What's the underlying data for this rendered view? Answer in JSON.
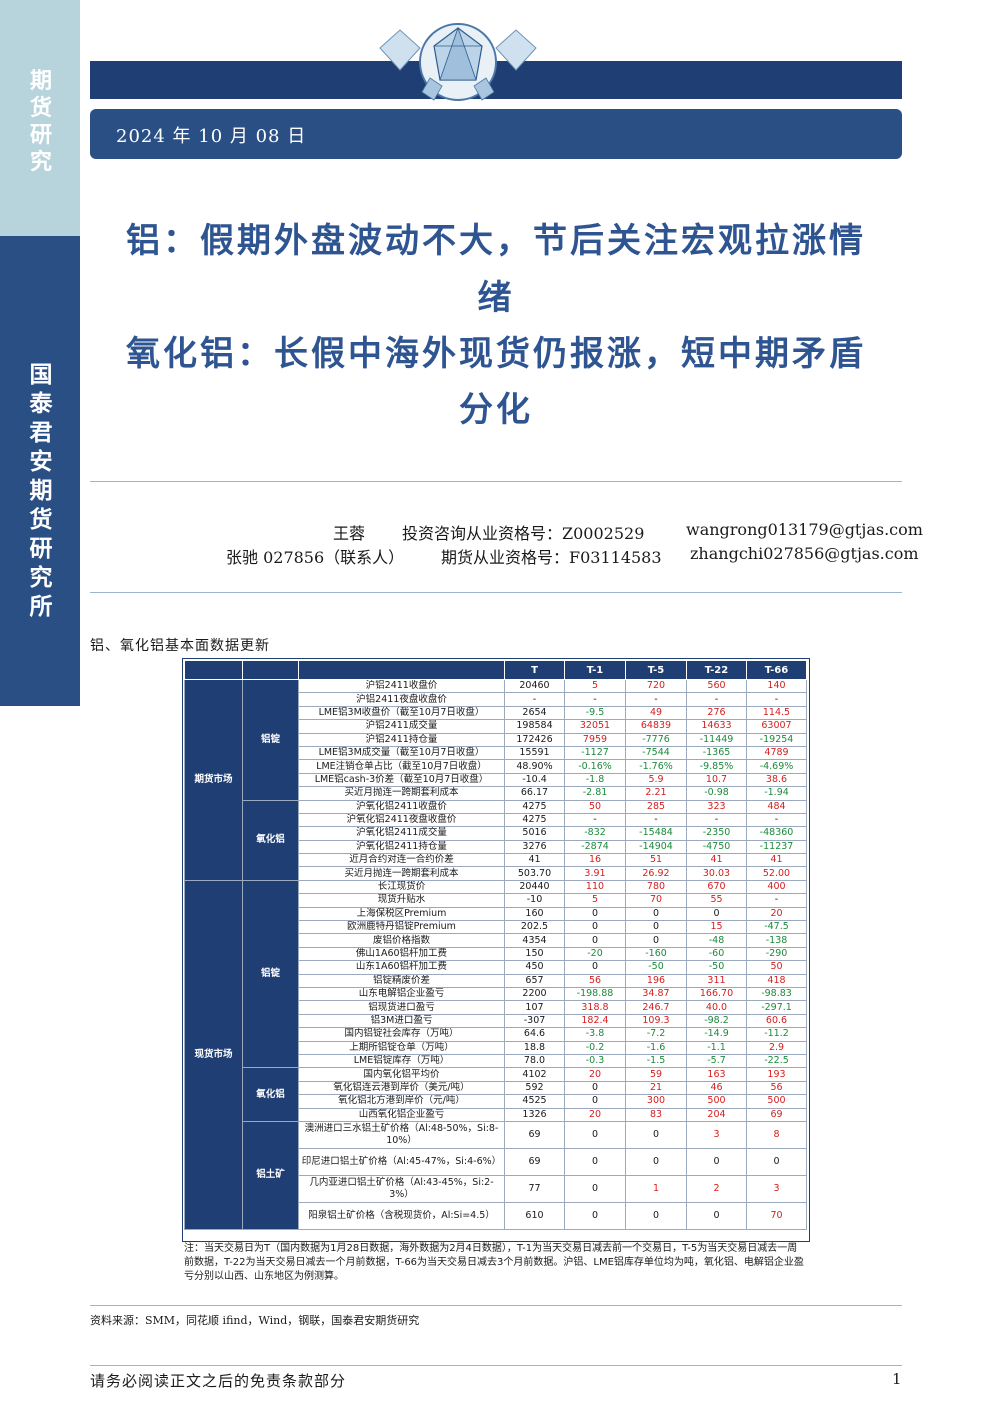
{
  "sidebar": {
    "top_label": "期货研究",
    "bottom_label": "国泰君安期货研究所"
  },
  "header": {
    "date": "2024 年 10 月 08 日"
  },
  "title": {
    "line1": "铝：假期外盘波动不大，节后关注宏观拉涨情",
    "line2": "绪",
    "line3": "氧化铝：长假中海外现货仍报涨，短中期矛盾",
    "line4": "分化"
  },
  "authors": {
    "a1_name": "王蓉",
    "a1_cert": "投资咨询从业资格号：Z0002529",
    "a1_email": "wangrong013179@gtjas.com",
    "a2_name": "张驰 027856（联系人）",
    "a2_cert": "期货从业资格号：F03114583",
    "a2_email": "zhangchi027856@gtjas.com"
  },
  "table": {
    "caption": "铝、氧化铝基本面数据更新",
    "headers": [
      "T",
      "T-1",
      "T-5",
      "T-22",
      "T-66"
    ],
    "categories": {
      "futures": "期货市场",
      "spot": "现货市场",
      "al_f": "铝锭",
      "alumina_f": "氧化铝",
      "al_s": "铝锭",
      "alumina_s": "氧化铝",
      "bauxite": "铝土矿"
    },
    "rows": [
      [
        "沪铝2411收盘价",
        "20460",
        "5",
        "720",
        "560",
        "140"
      ],
      [
        "沪铝2411夜盘收盘价",
        "-",
        "-",
        "-",
        "-",
        "-"
      ],
      [
        "LME铝3M收盘价（截至10月7日收盘）",
        "2654",
        "-9.5",
        "49",
        "276",
        "114.5"
      ],
      [
        "沪铝2411成交量",
        "198584",
        "32051",
        "64839",
        "14633",
        "63007"
      ],
      [
        "沪铝2411持仓量",
        "172426",
        "7959",
        "-7776",
        "-11449",
        "-19254"
      ],
      [
        "LME铝3M成交量（截至10月7日收盘）",
        "15591",
        "-1127",
        "-7544",
        "-1365",
        "4789"
      ],
      [
        "LME注销仓单占比（截至10月7日收盘）",
        "48.90%",
        "-0.16%",
        "-1.76%",
        "-9.85%",
        "-4.69%"
      ],
      [
        "LME铝cash-3价差（截至10月7日收盘）",
        "-10.4",
        "-1.8",
        "5.9",
        "10.7",
        "38.6"
      ],
      [
        "买近月抛连一跨期套利成本",
        "66.17",
        "-2.81",
        "2.21",
        "-0.98",
        "-1.94"
      ],
      [
        "沪氧化铝2411收盘价",
        "4275",
        "50",
        "285",
        "323",
        "484"
      ],
      [
        "沪氧化铝2411夜盘收盘价",
        "4275",
        "-",
        "-",
        "-",
        "-"
      ],
      [
        "沪氧化铝2411成交量",
        "5016",
        "-832",
        "-15484",
        "-2350",
        "-48360"
      ],
      [
        "沪氧化铝2411持仓量",
        "3276",
        "-2874",
        "-14904",
        "-4750",
        "-11237"
      ],
      [
        "近月合约对连一合约价差",
        "41",
        "16",
        "51",
        "41",
        "41"
      ],
      [
        "买近月抛连一跨期套利成本",
        "503.70",
        "3.91",
        "26.92",
        "30.03",
        "52.00"
      ],
      [
        "长江现货价",
        "20440",
        "110",
        "780",
        "670",
        "400"
      ],
      [
        "现货升贴水",
        "-10",
        "5",
        "70",
        "55",
        "-"
      ],
      [
        "上海保税区Premium",
        "160",
        "0",
        "0",
        "0",
        "20"
      ],
      [
        "欧洲鹿特丹铝锭Premium",
        "202.5",
        "0",
        "0",
        "15",
        "-47.5"
      ],
      [
        "废铝价格指数",
        "4354",
        "0",
        "0",
        "-48",
        "-138"
      ],
      [
        "佛山1A60铝杆加工费",
        "150",
        "-20",
        "-160",
        "-60",
        "-290"
      ],
      [
        "山东1A60铝杆加工费",
        "450",
        "0",
        "-50",
        "-50",
        "50"
      ],
      [
        "铝锭精废价差",
        "657",
        "56",
        "196",
        "311",
        "418"
      ],
      [
        "山东电解铝企业盈亏",
        "2200",
        "-198.88",
        "34.87",
        "166.70",
        "-98.83"
      ],
      [
        "铝现货进口盈亏",
        "107",
        "318.8",
        "246.7",
        "40.0",
        "-297.1"
      ],
      [
        "铝3M进口盈亏",
        "-307",
        "182.4",
        "109.3",
        "-98.2",
        "60.6"
      ],
      [
        "国内铝锭社会库存（万吨）",
        "64.6",
        "-3.8",
        "-7.2",
        "-14.9",
        "-11.2"
      ],
      [
        "上期所铝锭仓单（万吨）",
        "18.8",
        "-0.2",
        "-1.6",
        "-1.1",
        "2.9"
      ],
      [
        "LME铝锭库存（万吨）",
        "78.0",
        "-0.3",
        "-1.5",
        "-5.7",
        "-22.5"
      ],
      [
        "国内氧化铝平均价",
        "4102",
        "20",
        "59",
        "163",
        "193"
      ],
      [
        "氧化铝连云港到岸价（美元/吨）",
        "592",
        "0",
        "21",
        "46",
        "56"
      ],
      [
        "氧化铝北方港到岸价（元/吨）",
        "4525",
        "0",
        "300",
        "500",
        "500"
      ],
      [
        "山西氧化铝企业盈亏",
        "1326",
        "20",
        "83",
        "204",
        "69"
      ],
      [
        "澳洲进口三水铝土矿价格（Al:48-50%，Si:8-10%）",
        "69",
        "0",
        "0",
        "3",
        "8"
      ],
      [
        "印尼进口铝土矿价格（Al:45-47%，Si:4-6%）",
        "69",
        "0",
        "0",
        "0",
        "0"
      ],
      [
        "几内亚进口铝土矿价格（Al:43-45%，Si:2-3%）",
        "77",
        "0",
        "1",
        "2",
        "3"
      ],
      [
        "阳泉铝土矿价格（含税现货价，Al:Si=4.5）",
        "610",
        "0",
        "0",
        "0",
        "70"
      ]
    ],
    "note": "注：当天交易日为T（国内数据为1月28日数据，海外数据为2月4日数据），T-1为当天交易日减去前一个交易日，T-5为当天交易日减去一周前数据，T-22为当天交易日减去一个月前数据，T-66为当天交易日减去3个月前数据。沪铝、LME铝库存单位均为吨，氧化铝、电解铝企业盈亏分别以山西、山东地区为例测算。"
  },
  "source": "资料来源：SMM，同花顺 ifind，Wind，钢联，国泰君安期货研究",
  "footer": {
    "disclaimer": "请务必阅读正文之后的免责条款部分",
    "page": "1"
  },
  "colors": {
    "navy": "#1f3e74",
    "title_blue": "#2e5591",
    "positive": "#d42020",
    "negative": "#1d8a3c"
  }
}
